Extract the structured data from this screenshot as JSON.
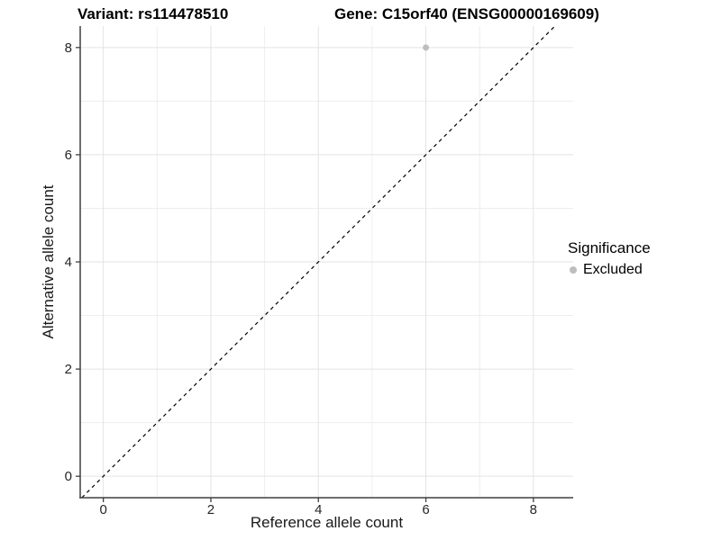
{
  "header": {
    "variant_title": "Variant: rs114478510",
    "gene_title": "Gene: C15orf40 (ENSG00000169609)"
  },
  "chart_data": {
    "type": "scatter",
    "title": "Variant: rs114478510 — Gene: C15orf40 (ENSG00000169609)",
    "xlabel": "Reference allele count",
    "ylabel": "Alternative allele count",
    "xlim": [
      -0.43,
      8.74
    ],
    "ylim": [
      -0.4,
      8.4
    ],
    "xticks": [
      0,
      2,
      4,
      6,
      8
    ],
    "yticks": [
      0,
      2,
      4,
      6,
      8
    ],
    "x_minor_gridlines": [
      1,
      3,
      5,
      7
    ],
    "y_minor_gridlines": [
      1,
      3,
      5,
      7
    ],
    "grid": "major and minor, light gray on white",
    "legend_position": "right",
    "reference_line": {
      "type": "identity y=x",
      "from": -0.4,
      "to": 8.4,
      "style": "dashed",
      "color": "#000000"
    },
    "series": [
      {
        "name": "Excluded",
        "marker": "circle",
        "color": "#bebebe",
        "points": [
          [
            6,
            8
          ]
        ]
      }
    ],
    "legend": {
      "title": "Significance",
      "entries": [
        {
          "label": "Excluded",
          "color": "#bebebe"
        }
      ]
    }
  },
  "colors": {
    "background": "#ffffff",
    "grid_major": "#e3e3e3",
    "grid_minor": "#eeeeee",
    "axis_line": "#3f3f3f",
    "tick_text": "#262626",
    "point": "#bebebe",
    "reference_line": "#000000"
  }
}
